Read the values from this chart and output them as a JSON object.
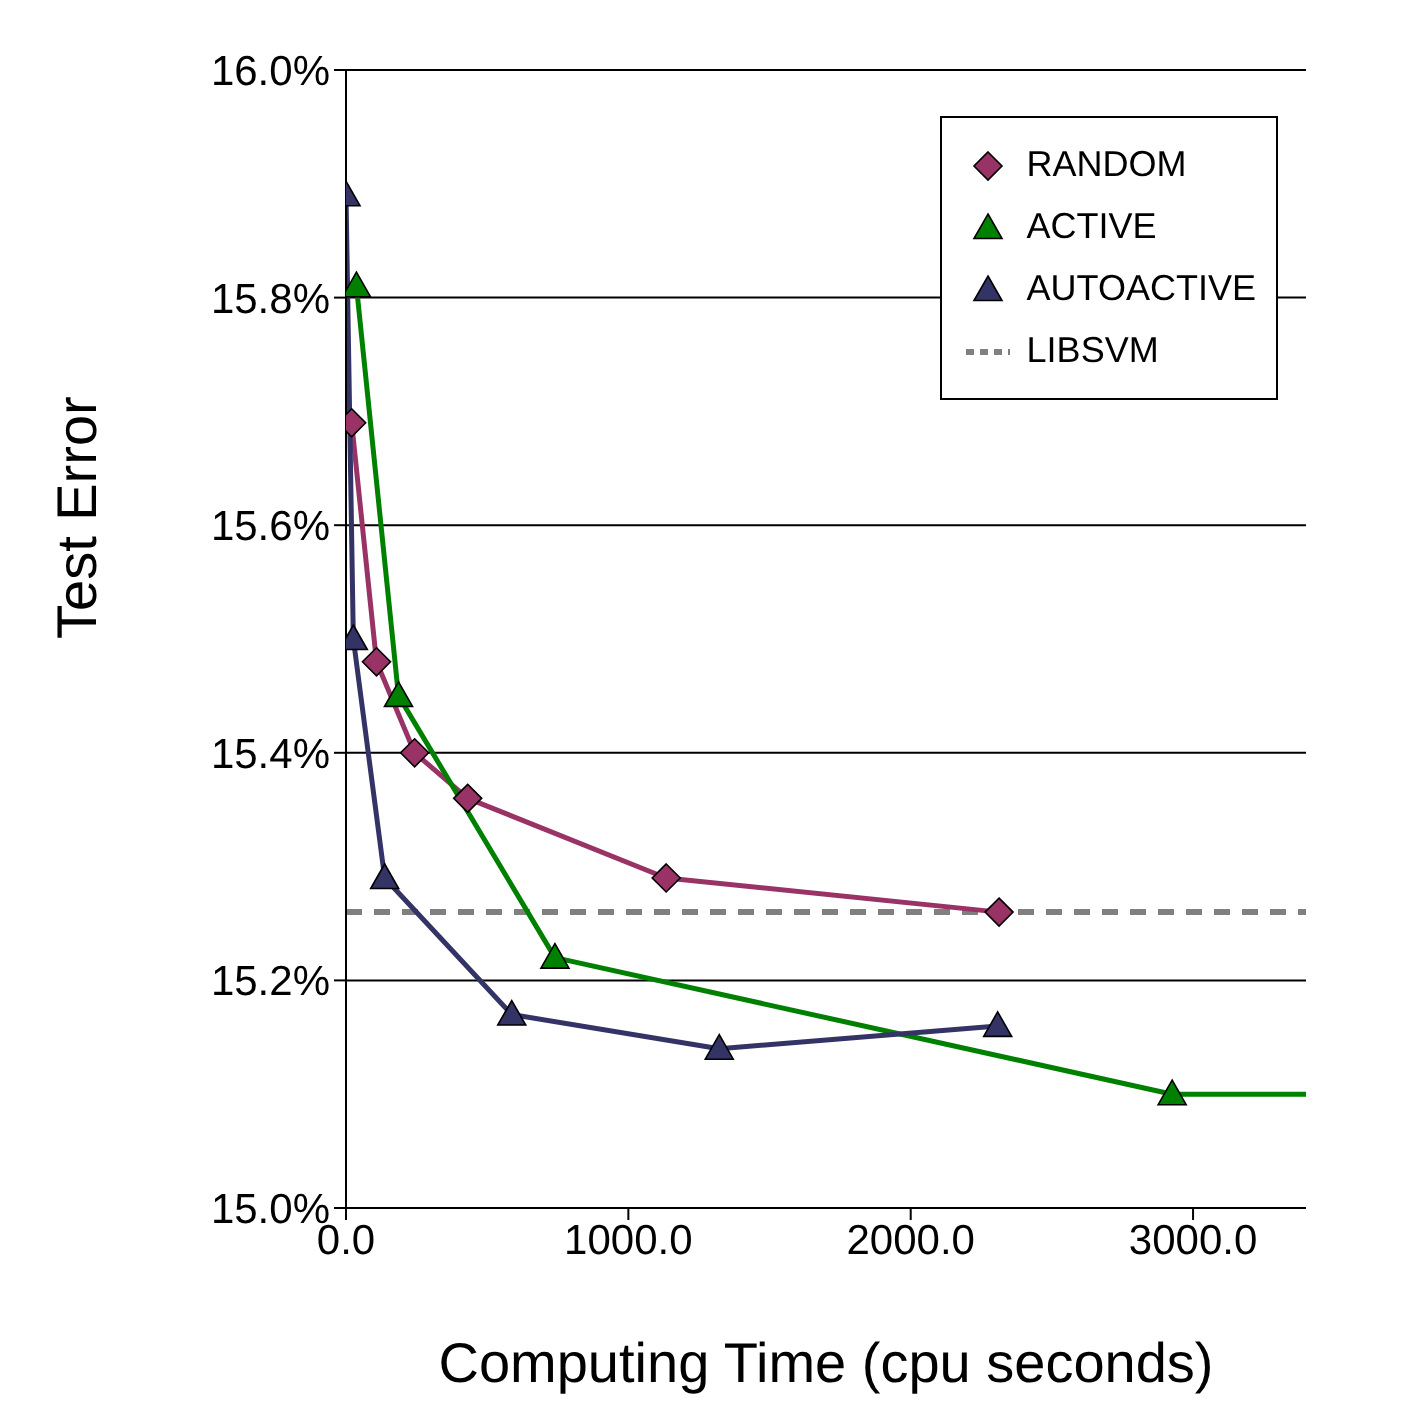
{
  "chart_data": {
    "type": "line",
    "xlabel": "Computing Time (cpu seconds)",
    "ylabel": "Test Error",
    "xlim": [
      0,
      3400
    ],
    "xticks": [
      {
        "value": 0,
        "label": "0.0"
      },
      {
        "value": 1000,
        "label": "1000.0"
      },
      {
        "value": 2000,
        "label": "2000.0"
      },
      {
        "value": 3000,
        "label": "3000.0"
      }
    ],
    "ylim": [
      15.0,
      16.0
    ],
    "yticks": [
      {
        "value": 15.0,
        "label": "15.0%"
      },
      {
        "value": 15.2,
        "label": "15.2%"
      },
      {
        "value": 15.4,
        "label": "15.4%"
      },
      {
        "value": 15.6,
        "label": "15.6%"
      },
      {
        "value": 15.8,
        "label": "15.8%"
      },
      {
        "value": 16.0,
        "label": "16.0%"
      }
    ],
    "grid": "y",
    "legend": "top right",
    "series": [
      {
        "name": "RANDOM",
        "color": "#993366",
        "marker": "diamond",
        "x": [
          20,
          108,
          243,
          431,
          1134,
          2313
        ],
        "values": [
          15.69,
          15.48,
          15.4,
          15.36,
          15.29,
          15.26
        ]
      },
      {
        "name": "ACTIVE",
        "color": "#008000",
        "marker": "triangle",
        "x": [
          37,
          186,
          740,
          2926,
          3400
        ],
        "values": [
          15.81,
          15.45,
          15.22,
          15.1,
          15.1
        ]
      },
      {
        "name": "AUTOACTIVE",
        "color": "#333366",
        "marker": "triangle",
        "x": [
          0,
          26,
          137,
          587,
          1322,
          2308
        ],
        "values": [
          15.89,
          15.5,
          15.29,
          15.17,
          15.14,
          15.16
        ]
      }
    ],
    "ref_lines": [
      {
        "axis": "y",
        "value": 15.26,
        "label": "LIBSVM",
        "color": "#808080",
        "line_style": "dashed"
      }
    ]
  }
}
